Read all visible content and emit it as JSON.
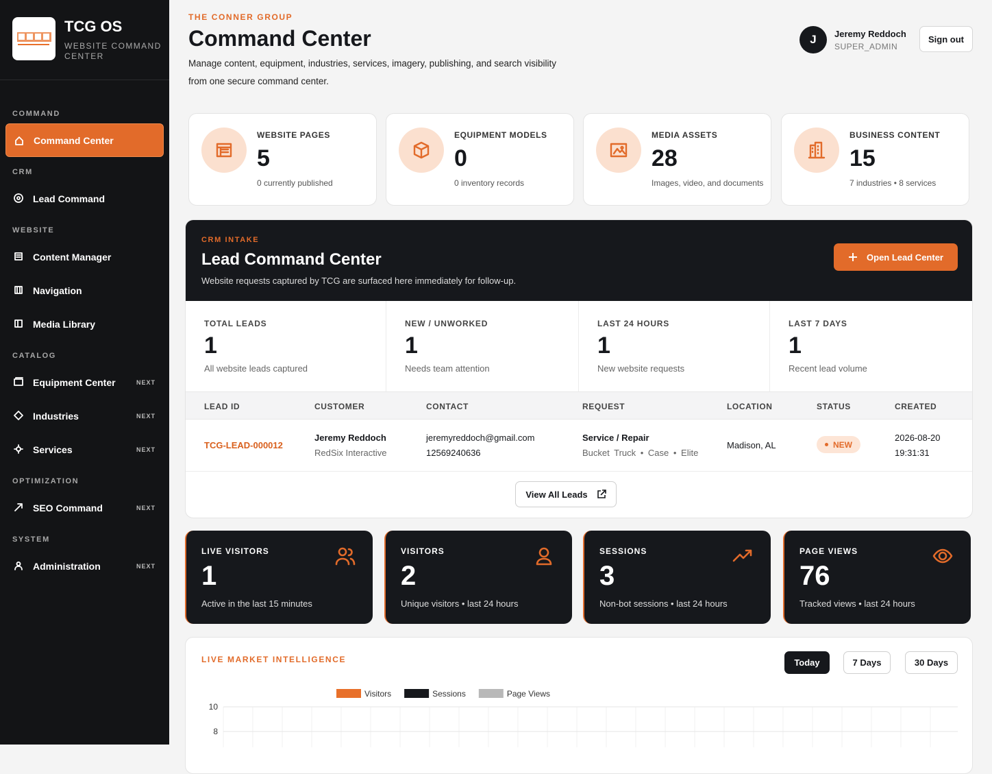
{
  "sidebar": {
    "brand": "TCG OS",
    "tagline": "WEBSITE COMMAND CENTER",
    "sections": [
      {
        "label": "COMMAND",
        "items": [
          {
            "label": "Command Center",
            "active": true
          }
        ]
      },
      {
        "label": "CRM",
        "items": [
          {
            "label": "Lead Command"
          }
        ]
      },
      {
        "label": "WEBSITE",
        "items": [
          {
            "label": "Content Manager"
          },
          {
            "label": "Navigation"
          },
          {
            "label": "Media Library"
          }
        ]
      },
      {
        "label": "CATALOG",
        "items": [
          {
            "label": "Equipment Center",
            "badge": "NEXT"
          },
          {
            "label": "Industries",
            "badge": "NEXT"
          },
          {
            "label": "Services",
            "badge": "NEXT"
          }
        ]
      },
      {
        "label": "OPTIMIZATION",
        "items": [
          {
            "label": "SEO Command",
            "badge": "NEXT"
          }
        ]
      },
      {
        "label": "SYSTEM",
        "items": [
          {
            "label": "Administration",
            "badge": "NEXT"
          }
        ]
      }
    ]
  },
  "header": {
    "eyebrow": "THE CONNER GROUP",
    "title": "Command Center",
    "description": "Manage content, equipment, industries, services, imagery, publishing, and search visibility from one secure command center."
  },
  "user": {
    "initial": "J",
    "name": "Jeremy Reddoch",
    "role": "SUPER_ADMIN",
    "sign_out": "Sign out"
  },
  "stats": [
    {
      "label": "WEBSITE PAGES",
      "value": 5,
      "note": "0 currently published"
    },
    {
      "label": "EQUIPMENT MODELS",
      "value": 0,
      "note": "0 inventory records"
    },
    {
      "label": "MEDIA ASSETS",
      "value": 28,
      "note": "Images, video, and documents"
    },
    {
      "label": "BUSINESS CONTENT",
      "value": 15,
      "note": "7 industries • 8 services"
    }
  ],
  "crm": {
    "eyebrow": "CRM INTAKE",
    "title": "Lead Command Center",
    "description": "Website requests captured by TCG are surfaced here immediately for follow-up.",
    "button": "Open Lead Center",
    "metrics": [
      {
        "label": "TOTAL LEADS",
        "value": 1,
        "note": "All website leads captured"
      },
      {
        "label": "NEW / UNWORKED",
        "value": 1,
        "note": "Needs team attention"
      },
      {
        "label": "LAST 24 HOURS",
        "value": 1,
        "note": "New website requests"
      },
      {
        "label": "LAST 7 DAYS",
        "value": 1,
        "note": "Recent lead volume"
      }
    ],
    "table": {
      "columns": [
        "LEAD ID",
        "CUSTOMER",
        "CONTACT",
        "REQUEST",
        "LOCATION",
        "STATUS",
        "CREATED"
      ],
      "rows": [
        {
          "lead_id": "TCG-LEAD-000012",
          "customer": "Jeremy Reddoch",
          "company": "RedSix Interactive",
          "email": "jeremyreddoch@gmail.com",
          "phone": "12569240636",
          "request": "Service / Repair",
          "request_detail": "Bucket Truck • Case • Elite",
          "location": "Madison, AL",
          "status": "NEW",
          "created_date": "2026-08-20",
          "created_time": "19:31:31"
        }
      ]
    },
    "view_all": "View All Leads"
  },
  "traffic": [
    {
      "label": "LIVE VISITORS",
      "value": 1,
      "note": "Active in the last 15 minutes"
    },
    {
      "label": "VISITORS",
      "value": 2,
      "note": "Unique visitors • last 24 hours"
    },
    {
      "label": "SESSIONS",
      "value": 3,
      "note": "Non-bot sessions • last 24 hours"
    },
    {
      "label": "PAGE VIEWS",
      "value": 76,
      "note": "Tracked views • last 24 hours"
    }
  ],
  "market": {
    "title": "LIVE MARKET INTELLIGENCE",
    "ranges": [
      {
        "label": "Today",
        "active": true
      },
      {
        "label": "7 Days"
      },
      {
        "label": "30 Days"
      }
    ],
    "legend": [
      {
        "name": "Visitors",
        "color": "#e8702a"
      },
      {
        "name": "Sessions",
        "color": "#16181c"
      },
      {
        "name": "Page Views",
        "color": "#b8b8b8"
      }
    ],
    "yticks": [
      10,
      8
    ]
  }
}
